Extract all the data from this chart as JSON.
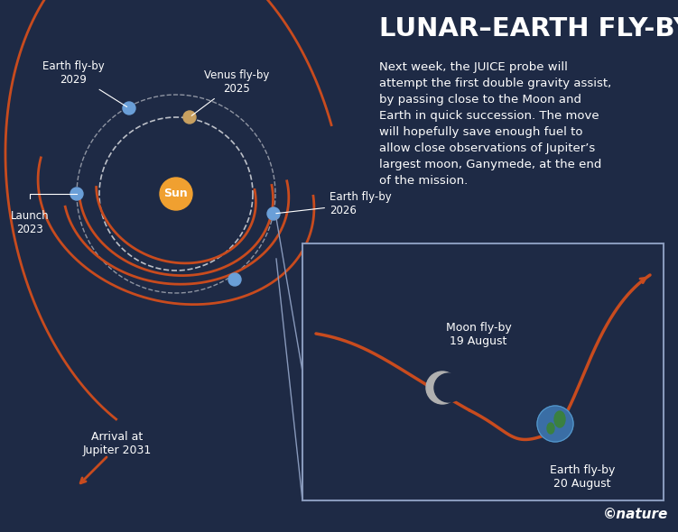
{
  "bg_color": "#1e2a45",
  "orbit_color": "#c84b1e",
  "orbit_lw": 2.0,
  "dashed_orbit_color": "#ffffff",
  "sun_color": "#f0a030",
  "earth_color": "#6a9fd8",
  "venus_color": "#c8a060",
  "text_color": "#ffffff",
  "title": "LUNAR–EARTH FLY-BY",
  "subtitle_lines": [
    "Next week, the JUICE probe will",
    "attempt the first double gravity assist,",
    "by passing close to the Moon and",
    "Earth in quick succession. The move",
    "will hopefully save enough fuel to",
    "allow close observations of Jupiter’s",
    "largest moon, Ganymede, at the end",
    "of the mission."
  ],
  "nature_credit": "©nature",
  "labels": {
    "earth_flyby_2029": "Earth fly-by\n2029",
    "venus_flyby_2025": "Venus fly-by\n2025",
    "launch_2023": "Launch\n2023",
    "earth_flyby_2026": "Earth fly-by\n2026",
    "sun": "Sun",
    "moon_flyby": "Moon fly-by\n19 August",
    "earth_flyby_aug": "Earth fly-by\n20 August",
    "arrival_jupiter": "Arrival at\nJupiter 2031"
  },
  "box_color": "#2a3a5a",
  "box_edge_color": "#8899bb"
}
